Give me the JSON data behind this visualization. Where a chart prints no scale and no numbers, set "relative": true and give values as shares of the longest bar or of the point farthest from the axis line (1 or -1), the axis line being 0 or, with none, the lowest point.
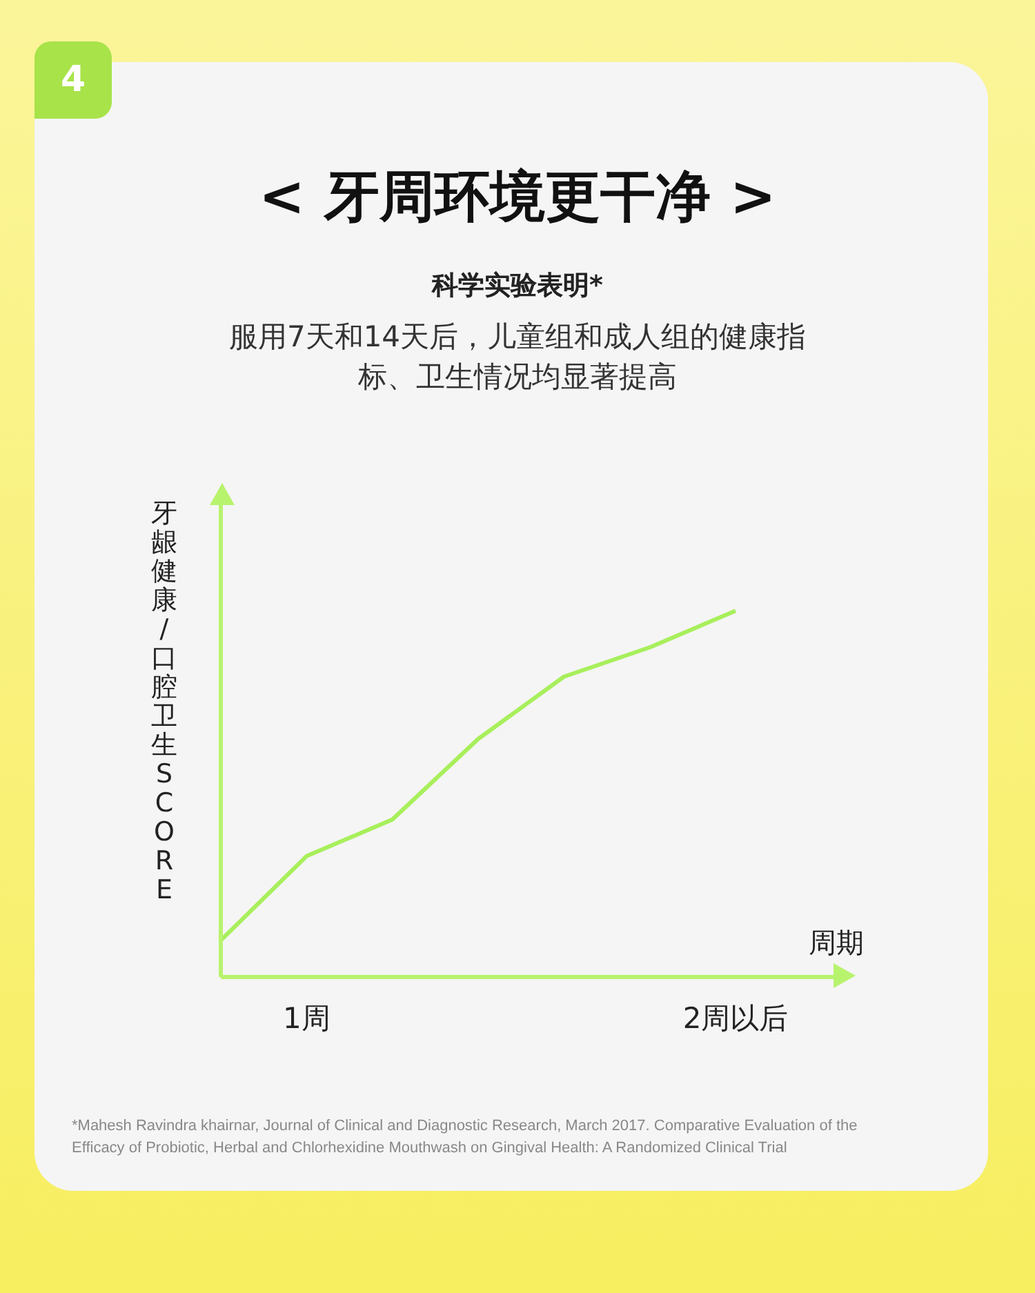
{
  "chart_data": {
    "type": "line",
    "title": "< 牙周环境更干净 >",
    "subtitle": "科学实验表明*",
    "xlabel": "周期",
    "ylabel": "牙龈健康/口腔卫生SCORE",
    "annotations": [
      "4",
      "服用7天和14天后，儿童组和成人组的健康指标、卫生情况均显著提高",
      "*Mahesh Ravindra khairnar, Journal of Clinical and Diagnostic Research, March 2017. Comparative Evaluation of the Efficacy of Probiotic, Herbal and Chlorhexidine Mouthwash on Gingival Health: A Randomized Clinical Trial"
    ],
    "categories": [
      null,
      "1周",
      null,
      null,
      null,
      null,
      "2周以后"
    ],
    "relative": true,
    "series": [
      {
        "color": "#a8ef5c",
        "values": [
          0.1,
          0.33,
          0.43,
          0.65,
          0.82,
          0.9,
          1
        ]
      }
    ]
  }
}
